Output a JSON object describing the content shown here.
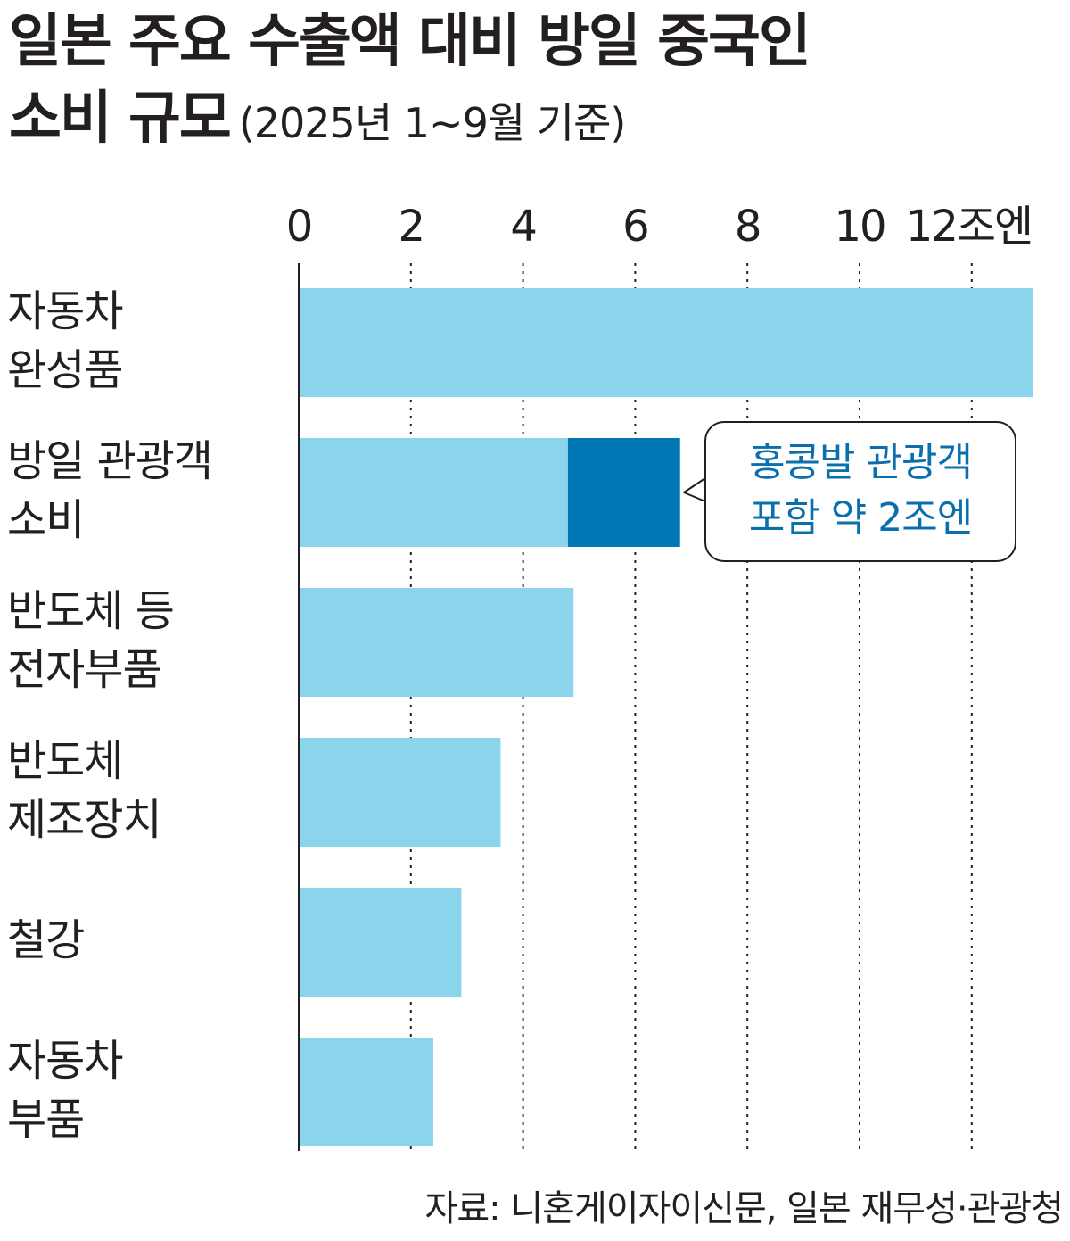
{
  "title": {
    "line1": "일본 주요 수출액 대비 방일 중국인",
    "line2": "소비 규모",
    "subtitle": "(2025년 1~9월 기준)"
  },
  "chart_data": {
    "type": "bar",
    "orientation": "horizontal",
    "unit_label": "12조엔",
    "xlim": [
      0,
      13
    ],
    "x_ticks": [
      0,
      2,
      4,
      6,
      8,
      10,
      12
    ],
    "x_tick_labels": [
      "0",
      "2",
      "4",
      "6",
      "8",
      "10",
      "12조엔"
    ],
    "grid": "vertical dotted",
    "categories": [
      [
        "자동차",
        "완성품"
      ],
      [
        "방일 관광객",
        "소비"
      ],
      [
        "반도체 등",
        "전자부품"
      ],
      [
        "반도체",
        "제조장치"
      ],
      [
        "철강"
      ],
      [
        "자동차",
        "부품"
      ]
    ],
    "values": [
      13.1,
      4.8,
      4.9,
      3.6,
      2.9,
      2.4
    ],
    "stacked_extra": [
      0,
      2.0,
      0,
      0,
      0,
      0
    ],
    "colors": {
      "base": "#8ad4ec",
      "extra": "#0077b4",
      "axis": "#231f20",
      "callout_text": "#0a6fad"
    },
    "annotation": {
      "lines": [
        "홍콩발 관광객",
        "포함 약 2조엔"
      ],
      "target_category_index": 1
    }
  },
  "source": "자료: 니혼게이자이신문, 일본 재무성·관광청"
}
